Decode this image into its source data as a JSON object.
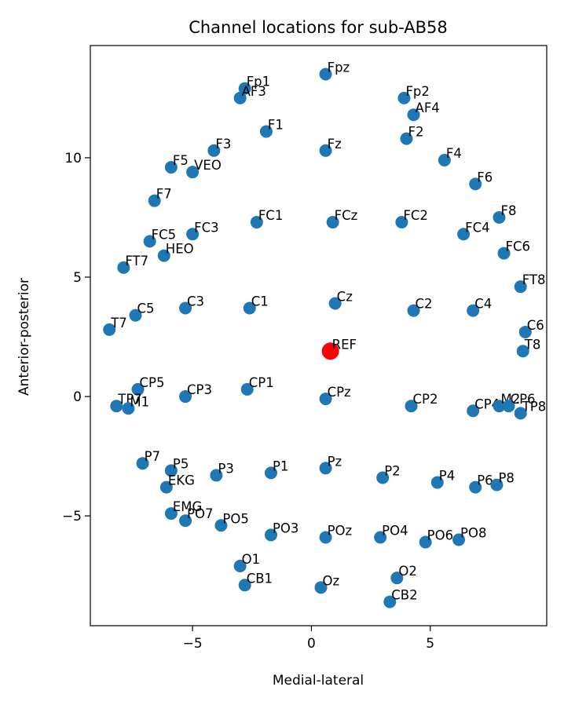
{
  "chart_data": {
    "type": "scatter",
    "title": "Channel locations for sub-AB58",
    "xlabel": "Medial-lateral",
    "ylabel": "Anterior-posterior",
    "xlim": [
      -9.3,
      9.9
    ],
    "ylim": [
      -9.6,
      14.7
    ],
    "xticks": [
      {
        "value": -5,
        "label": "−5"
      },
      {
        "value": 0,
        "label": "0"
      },
      {
        "value": 5,
        "label": "5"
      }
    ],
    "yticks": [
      {
        "value": -5,
        "label": "−5"
      },
      {
        "value": 0,
        "label": "0"
      },
      {
        "value": 5,
        "label": "5"
      },
      {
        "value": 10,
        "label": "10"
      }
    ],
    "grid": false,
    "colors": {
      "points": "#1f77b4",
      "reference": "#ff0000"
    },
    "points": [
      {
        "label": "Fpz",
        "x": 0.6,
        "y": 13.5
      },
      {
        "label": "Fp1",
        "x": -2.8,
        "y": 12.9
      },
      {
        "label": "AF3",
        "x": -3.0,
        "y": 12.5
      },
      {
        "label": "Fp2",
        "x": 3.9,
        "y": 12.5
      },
      {
        "label": "AF4",
        "x": 4.3,
        "y": 11.8
      },
      {
        "label": "F1",
        "x": -1.9,
        "y": 11.1
      },
      {
        "label": "Fz",
        "x": 0.6,
        "y": 10.3
      },
      {
        "label": "F2",
        "x": 4.0,
        "y": 10.8
      },
      {
        "label": "F3",
        "x": -4.1,
        "y": 10.3
      },
      {
        "label": "F4",
        "x": 5.6,
        "y": 9.9
      },
      {
        "label": "F5",
        "x": -5.9,
        "y": 9.6
      },
      {
        "label": "VEO",
        "x": -5.0,
        "y": 9.4
      },
      {
        "label": "F6",
        "x": 6.9,
        "y": 8.9
      },
      {
        "label": "F7",
        "x": -6.6,
        "y": 8.2
      },
      {
        "label": "F8",
        "x": 7.9,
        "y": 7.5
      },
      {
        "label": "FC1",
        "x": -2.3,
        "y": 7.3
      },
      {
        "label": "FCz",
        "x": 0.9,
        "y": 7.3
      },
      {
        "label": "FC2",
        "x": 3.8,
        "y": 7.3
      },
      {
        "label": "FC3",
        "x": -5.0,
        "y": 6.8
      },
      {
        "label": "FC4",
        "x": 6.4,
        "y": 6.8
      },
      {
        "label": "FC5",
        "x": -6.8,
        "y": 6.5
      },
      {
        "label": "HEO",
        "x": -6.2,
        "y": 5.9
      },
      {
        "label": "FC6",
        "x": 8.1,
        "y": 6.0
      },
      {
        "label": "FT7",
        "x": -7.9,
        "y": 5.4
      },
      {
        "label": "FT8",
        "x": 8.8,
        "y": 4.6
      },
      {
        "label": "Cz",
        "x": 1.0,
        "y": 3.9
      },
      {
        "label": "C1",
        "x": -2.6,
        "y": 3.7
      },
      {
        "label": "C3",
        "x": -5.3,
        "y": 3.7
      },
      {
        "label": "C2",
        "x": 4.3,
        "y": 3.6
      },
      {
        "label": "C4",
        "x": 6.8,
        "y": 3.6
      },
      {
        "label": "C5",
        "x": -7.4,
        "y": 3.4
      },
      {
        "label": "T7",
        "x": -8.5,
        "y": 2.8
      },
      {
        "label": "C6",
        "x": 9.0,
        "y": 2.7
      },
      {
        "label": "T8",
        "x": 8.9,
        "y": 1.9
      },
      {
        "label": "CP5",
        "x": -7.3,
        "y": 0.3
      },
      {
        "label": "CP1",
        "x": -2.7,
        "y": 0.3
      },
      {
        "label": "CPz",
        "x": 0.6,
        "y": -0.1
      },
      {
        "label": "CP3",
        "x": -5.3,
        "y": 0.0
      },
      {
        "label": "TP7",
        "x": -8.2,
        "y": -0.4
      },
      {
        "label": "M1",
        "x": -7.7,
        "y": -0.5
      },
      {
        "label": "CP2",
        "x": 4.2,
        "y": -0.4
      },
      {
        "label": "CP4",
        "x": 6.8,
        "y": -0.6
      },
      {
        "label": "M2",
        "x": 7.9,
        "y": -0.4
      },
      {
        "label": "CP6",
        "x": 8.3,
        "y": -0.4
      },
      {
        "label": "TP8",
        "x": 8.8,
        "y": -0.7
      },
      {
        "label": "P7",
        "x": -7.1,
        "y": -2.8
      },
      {
        "label": "P5",
        "x": -5.9,
        "y": -3.1
      },
      {
        "label": "EKG",
        "x": -6.1,
        "y": -3.8
      },
      {
        "label": "P3",
        "x": -4.0,
        "y": -3.3
      },
      {
        "label": "P1",
        "x": -1.7,
        "y": -3.2
      },
      {
        "label": "Pz",
        "x": 0.6,
        "y": -3.0
      },
      {
        "label": "P2",
        "x": 3.0,
        "y": -3.4
      },
      {
        "label": "P4",
        "x": 5.3,
        "y": -3.6
      },
      {
        "label": "P6",
        "x": 6.9,
        "y": -3.8
      },
      {
        "label": "P8",
        "x": 7.8,
        "y": -3.7
      },
      {
        "label": "EMG",
        "x": -5.9,
        "y": -4.9
      },
      {
        "label": "PO7",
        "x": -5.3,
        "y": -5.2
      },
      {
        "label": "PO5",
        "x": -3.8,
        "y": -5.4
      },
      {
        "label": "PO3",
        "x": -1.7,
        "y": -5.8
      },
      {
        "label": "POz",
        "x": 0.6,
        "y": -5.9
      },
      {
        "label": "PO4",
        "x": 2.9,
        "y": -5.9
      },
      {
        "label": "PO6",
        "x": 4.8,
        "y": -6.1
      },
      {
        "label": "PO8",
        "x": 6.2,
        "y": -6.0
      },
      {
        "label": "O1",
        "x": -3.0,
        "y": -7.1
      },
      {
        "label": "O2",
        "x": 3.6,
        "y": -7.6
      },
      {
        "label": "CB1",
        "x": -2.8,
        "y": -7.9
      },
      {
        "label": "Oz",
        "x": 0.4,
        "y": -8.0
      },
      {
        "label": "CB2",
        "x": 3.3,
        "y": -8.6
      }
    ],
    "reference": {
      "label": "REF",
      "x": 0.8,
      "y": 1.9
    }
  }
}
